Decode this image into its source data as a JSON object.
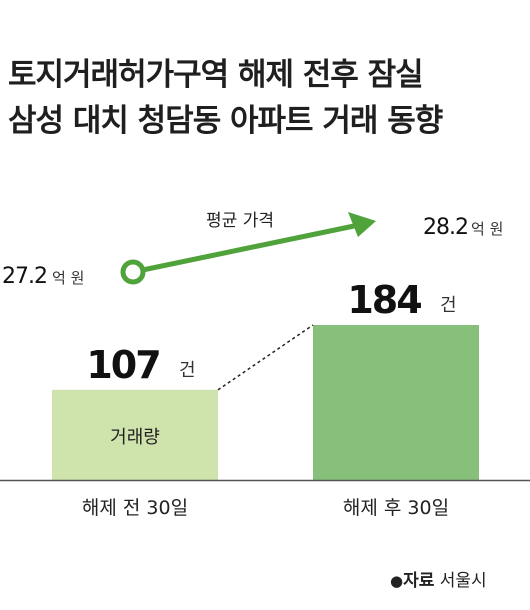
{
  "title_lines": [
    "토지거래허가구역 해제 전후 잠실",
    "삼성 대치 청담동 아파트 거래 동향"
  ],
  "colors": {
    "bar_before": "#cfe3ad",
    "bar_after": "#86c07a",
    "price_line": "#4fa33a",
    "start_marker_stroke": "#4fa33a",
    "value_text": "#111111",
    "unit_text": "#333333"
  },
  "chart_data": {
    "type": "bar",
    "categories": [
      "해제 전 30일",
      "해제 후 30일"
    ],
    "series": [
      {
        "name": "거래량",
        "values": [
          107,
          184
        ],
        "unit": "건",
        "value_labels": [
          "107",
          "184"
        ]
      }
    ],
    "overlay_line": {
      "name": "평균 가격",
      "values": [
        27.2,
        28.2
      ],
      "value_labels": [
        "27.2",
        "28.2"
      ],
      "unit": "억 원"
    },
    "title": "토지거래허가구역 해제 전후 잠실 삼성 대치 청담동 아파트 거래 동향",
    "xlabel": "",
    "ylabel": "",
    "grid": false,
    "legend": "none"
  },
  "source": {
    "prefix": "자료",
    "name": "서울시"
  }
}
